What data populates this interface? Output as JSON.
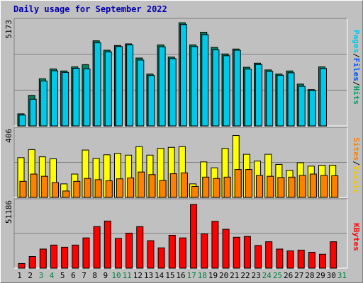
{
  "title": "Daily usage for September 2022",
  "colors": {
    "hits": "#00a070",
    "files": "#0050ff",
    "pages": "#00c8e8",
    "visits": "#f0c800",
    "sites": "#ff8000",
    "kbytes": "#ff0000",
    "weekend_day": "#008040",
    "weekday": "#000000"
  },
  "chart_data": [
    {
      "type": "bar",
      "panel": "top",
      "ymax_label": "5173",
      "categories": [
        "1",
        "2",
        "3",
        "4",
        "5",
        "6",
        "7",
        "8",
        "9",
        "10",
        "11",
        "12",
        "13",
        "14",
        "15",
        "16",
        "17",
        "18",
        "19",
        "20",
        "21",
        "22",
        "23",
        "24",
        "25",
        "26",
        "27",
        "28",
        "29",
        "30",
        "31"
      ],
      "series": [
        {
          "name": "Hits",
          "values": [
            590,
            1490,
            2300,
            2780,
            2680,
            2880,
            2990,
            4150,
            3690,
            3920,
            4000,
            3310,
            2530,
            3950,
            3360,
            5030,
            3950,
            4570,
            3830,
            3510,
            3750,
            2860,
            3060,
            2730,
            2530,
            2680,
            2040,
            1770,
            2880,
            null,
            null
          ]
        },
        {
          "name": "Files",
          "values": [
            530,
            1300,
            2190,
            2690,
            2610,
            2810,
            2780,
            4050,
            3610,
            3870,
            3950,
            3210,
            2460,
            3860,
            3280,
            4940,
            3870,
            4450,
            3710,
            3420,
            3690,
            2770,
            2990,
            2660,
            2470,
            2590,
            1930,
            1730,
            2800,
            null,
            null
          ]
        },
        {
          "name": "Pages",
          "values": [
            null,
            null,
            null,
            null,
            null,
            null,
            null,
            null,
            null,
            null,
            null,
            null,
            null,
            null,
            null,
            null,
            null,
            null,
            null,
            null,
            null,
            null,
            null,
            null,
            null,
            null,
            null,
            null,
            null,
            null,
            null
          ]
        }
      ],
      "value_order_note": ""
    },
    {
      "type": "bar",
      "panel": "middle",
      "ymax_label": "406",
      "categories": [
        "1",
        "2",
        "3",
        "4",
        "5",
        "6",
        "7",
        "8",
        "9",
        "10",
        "11",
        "12",
        "13",
        "14",
        "15",
        "16",
        "17",
        "18",
        "19",
        "20",
        "21",
        "22",
        "23",
        "24",
        "25",
        "26",
        "27",
        "28",
        "29",
        "30",
        "31"
      ],
      "series": [
        {
          "name": "Visits",
          "values": [
            235,
            283,
            240,
            228,
            80,
            138,
            280,
            230,
            252,
            260,
            250,
            300,
            250,
            290,
            296,
            300,
            80,
            210,
            175,
            290,
            366,
            255,
            215,
            255,
            195,
            160,
            205,
            185,
            190,
            190,
            null
          ]
        },
        {
          "name": "Sites",
          "values": [
            95,
            138,
            125,
            88,
            38,
            95,
            112,
            105,
            98,
            110,
            115,
            150,
            135,
            100,
            140,
            145,
            65,
            120,
            112,
            120,
            165,
            165,
            130,
            125,
            118,
            120,
            130,
            138,
            130,
            128,
            null
          ]
        }
      ]
    },
    {
      "type": "bar",
      "panel": "bottom",
      "ymax_label": "51186",
      "categories": [
        "1",
        "2",
        "3",
        "4",
        "5",
        "6",
        "7",
        "8",
        "9",
        "10",
        "11",
        "12",
        "13",
        "14",
        "15",
        "16",
        "17",
        "18",
        "19",
        "20",
        "21",
        "22",
        "23",
        "24",
        "25",
        "26",
        "27",
        "28",
        "29",
        "30",
        "31"
      ],
      "series": [
        {
          "name": "KBytes",
          "values": [
            3500,
            8800,
            14400,
            17400,
            15800,
            17400,
            22800,
            31300,
            35500,
            22400,
            26400,
            31300,
            20700,
            15300,
            24800,
            22800,
            48000,
            25800,
            35300,
            29300,
            23300,
            23900,
            17100,
            19900,
            14400,
            13000,
            13600,
            12000,
            10500,
            19900,
            null
          ]
        }
      ]
    }
  ],
  "right_labels": {
    "top": [
      "Pages",
      "/",
      "Files",
      "/",
      "Hits"
    ],
    "middle": [
      "Sites",
      "/",
      "Visits"
    ],
    "bottom": [
      "KBytes"
    ]
  },
  "weekend_days": [
    "3",
    "4",
    "10",
    "11",
    "17",
    "18",
    "24",
    "25",
    "31"
  ]
}
